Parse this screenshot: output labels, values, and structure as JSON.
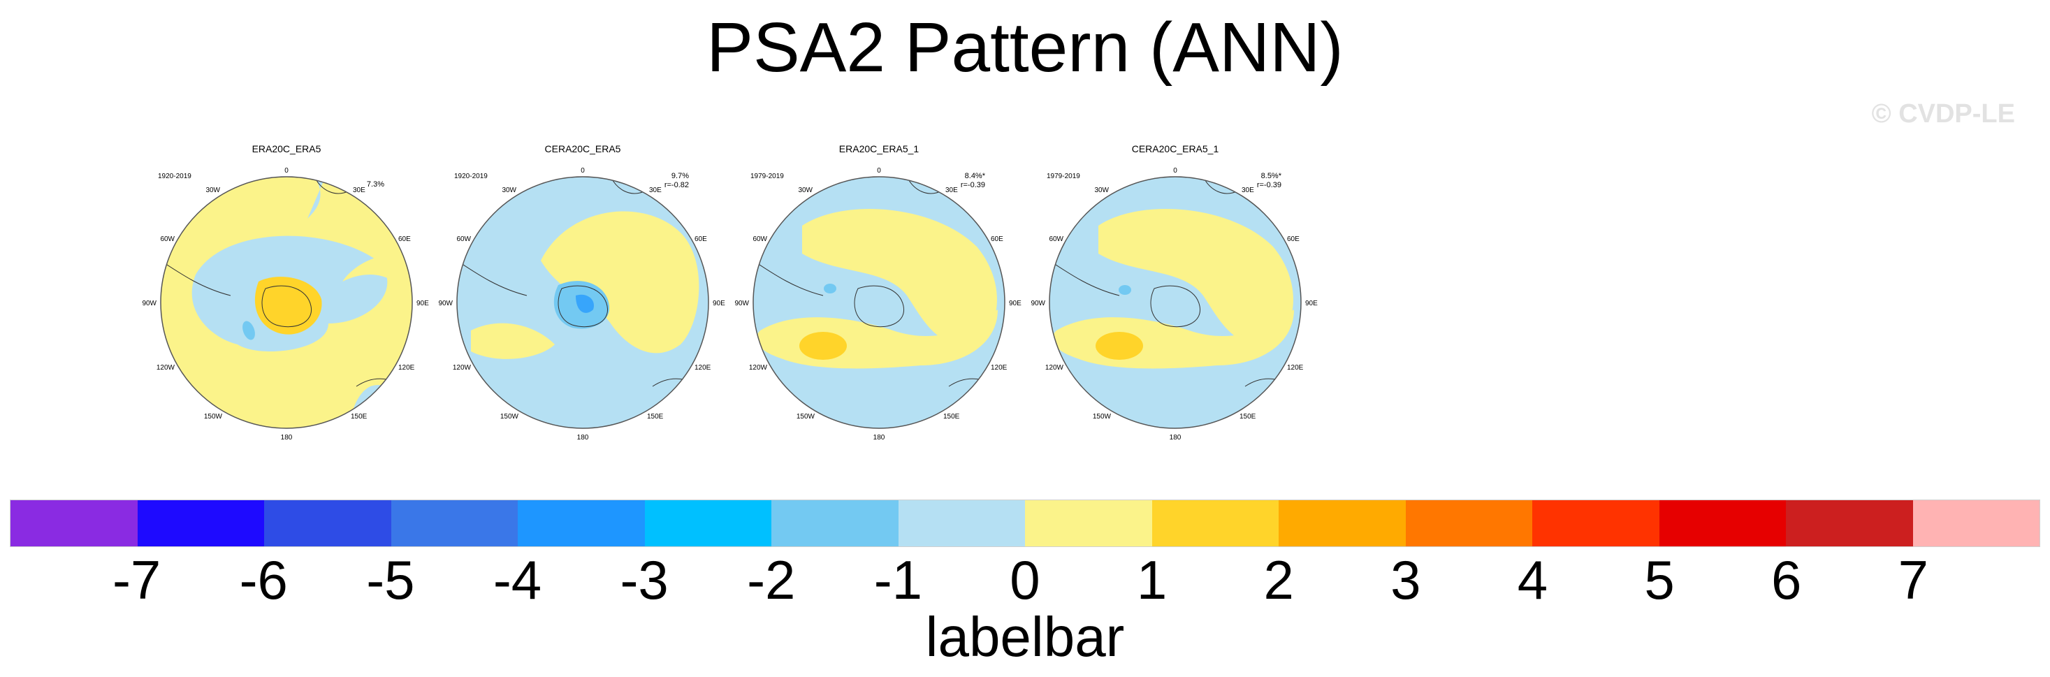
{
  "title": "PSA2 Pattern (ANN)",
  "watermark": "© CVDP-LE",
  "panels": [
    {
      "title": "ERA20C_ERA5",
      "period": "1920-2019",
      "stat_line1": "7.3%",
      "stat_line2": ""
    },
    {
      "title": "CERA20C_ERA5",
      "period": "1920-2019",
      "stat_line1": "9.7%",
      "stat_line2": "r=-0.82"
    },
    {
      "title": "ERA20C_ERA5_1",
      "period": "1979-2019",
      "stat_line1": "8.4%*",
      "stat_line2": "r=-0.39"
    },
    {
      "title": "CERA20C_ERA5_1",
      "period": "1979-2019",
      "stat_line1": "8.5%*",
      "stat_line2": "r=-0.39"
    }
  ],
  "lon_labels": {
    "l0": "0",
    "l30e": "30E",
    "l60e": "60E",
    "l90e": "90E",
    "l120e": "120E",
    "l150e": "150E",
    "l180": "180",
    "l150w": "150W",
    "l120w": "120W",
    "l90w": "90W",
    "l60w": "60W",
    "l30w": "30W"
  },
  "labelbar": {
    "title": "labelbar",
    "colors": [
      "#8a2be2",
      "#1e0aff",
      "#2e4ce6",
      "#3a77e8",
      "#1e96ff",
      "#00c0ff",
      "#73c9f2",
      "#b5e0f3",
      "#fbf38a",
      "#ffd42a",
      "#ffaa00",
      "#ff7700",
      "#ff3300",
      "#e60000",
      "#cc1f1f",
      "#ffb3b3"
    ],
    "ticks": [
      "-7",
      "-6",
      "-5",
      "-4",
      "-3",
      "-2",
      "-1",
      "0",
      "1",
      "2",
      "3",
      "4",
      "5",
      "6",
      "7"
    ]
  },
  "colors": {
    "ocean_neg": "#b5e0f3",
    "pos": "#fbf38a",
    "pos_strong": "#ffd42a",
    "neg_strong": "#73c9f2"
  }
}
